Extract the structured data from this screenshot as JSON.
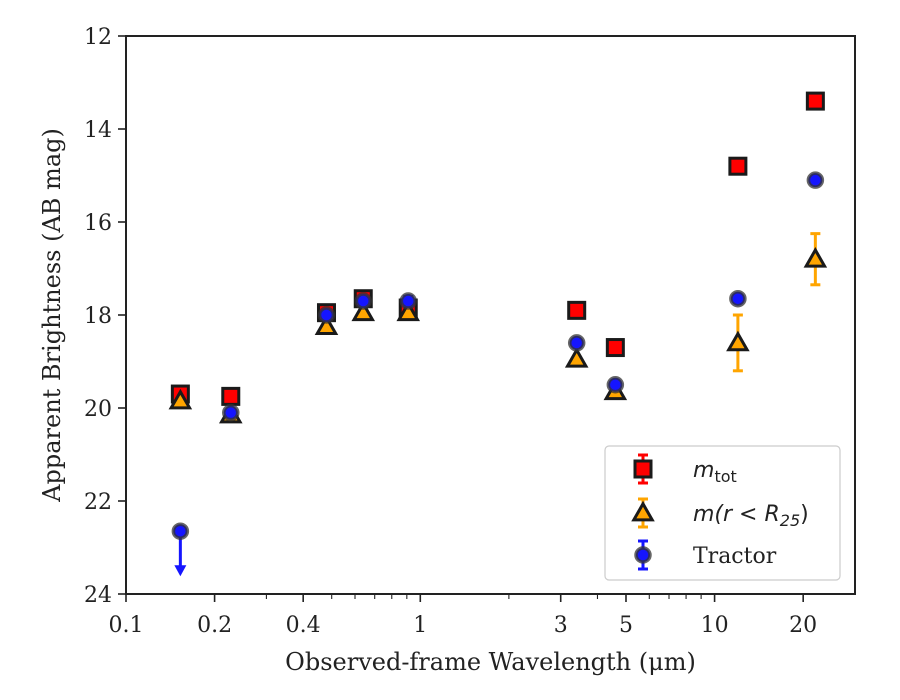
{
  "chart_data": {
    "type": "scatter",
    "xlabel": "Observed-frame Wavelength (μm)",
    "ylabel": "Apparent Brightness (AB mag)",
    "x_scale": "log",
    "xlim": [
      0.1,
      30
    ],
    "ylim": [
      24,
      12
    ],
    "y_inverted": true,
    "x_ticks": [
      0.1,
      0.2,
      0.4,
      1,
      3,
      5,
      10,
      20
    ],
    "x_tick_labels": [
      "0.1",
      "0.2",
      "0.4",
      "1",
      "3",
      "5",
      "10",
      "20"
    ],
    "y_ticks": [
      12,
      14,
      16,
      18,
      20,
      22,
      24
    ],
    "y_tick_labels": [
      "12",
      "14",
      "16",
      "18",
      "20",
      "22",
      "24"
    ],
    "grid": false,
    "legend_position": "bottom-right",
    "series": [
      {
        "name": "m_tot",
        "legend_text": "m",
        "legend_sub": "tot",
        "marker": "square",
        "fill": "#ff0000",
        "edge": "#1a1a1a",
        "errcolor": "#ff0000",
        "points": [
          {
            "x": 0.153,
            "y": 19.7,
            "err": 0.05
          },
          {
            "x": 0.227,
            "y": 19.75,
            "err": 0.05
          },
          {
            "x": 0.48,
            "y": 17.95,
            "err": 0.03
          },
          {
            "x": 0.64,
            "y": 17.65,
            "err": 0.03
          },
          {
            "x": 0.91,
            "y": 17.85,
            "err": 0.03
          },
          {
            "x": 3.4,
            "y": 17.9,
            "err": 0.03
          },
          {
            "x": 4.6,
            "y": 18.7,
            "err": 0.03
          },
          {
            "x": 12.0,
            "y": 14.8,
            "err": 0.03
          },
          {
            "x": 22.0,
            "y": 13.4,
            "err": 0.03
          }
        ]
      },
      {
        "name": "m(r < R_25)",
        "legend_text": "m(r < R",
        "legend_sub": "25",
        "legend_tail": ")",
        "marker": "triangle",
        "fill": "#ffa500",
        "edge": "#1a1a1a",
        "errcolor": "#ffa500",
        "points": [
          {
            "x": 0.153,
            "y": 19.85,
            "err": 0.05
          },
          {
            "x": 0.227,
            "y": 20.15,
            "err": 0.05
          },
          {
            "x": 0.48,
            "y": 18.25,
            "err": 0.03
          },
          {
            "x": 0.64,
            "y": 17.95,
            "err": 0.03
          },
          {
            "x": 0.91,
            "y": 17.95,
            "err": 0.03
          },
          {
            "x": 3.4,
            "y": 18.95,
            "err": 0.05
          },
          {
            "x": 4.6,
            "y": 19.65,
            "err": 0.05
          },
          {
            "x": 12.0,
            "y": 18.6,
            "err": 0.6
          },
          {
            "x": 22.0,
            "y": 16.8,
            "err": 0.55
          }
        ]
      },
      {
        "name": "Tractor",
        "legend_text": "Tractor",
        "marker": "circle",
        "fill": "#1515ff",
        "edge": "#333333",
        "errcolor": "#1515ff",
        "points": [
          {
            "x": 0.153,
            "y": 22.65,
            "upper_limit": true
          },
          {
            "x": 0.227,
            "y": 20.1,
            "err": 0.05
          },
          {
            "x": 0.48,
            "y": 18.0,
            "err": 0.03
          },
          {
            "x": 0.64,
            "y": 17.7,
            "err": 0.03
          },
          {
            "x": 0.91,
            "y": 17.7,
            "err": 0.1
          },
          {
            "x": 3.4,
            "y": 18.6,
            "err": 0.03
          },
          {
            "x": 4.6,
            "y": 19.5,
            "err": 0.05
          },
          {
            "x": 12.0,
            "y": 17.65,
            "err": 0.03
          },
          {
            "x": 22.0,
            "y": 15.1,
            "err": 0.05
          }
        ]
      }
    ]
  }
}
